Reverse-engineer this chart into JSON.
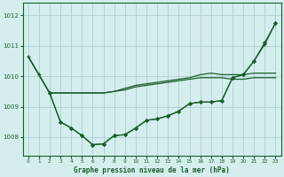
{
  "xlabel": "Graphe pression niveau de la mer (hPa)",
  "xlim": [
    -0.5,
    23.5
  ],
  "ylim": [
    1007.4,
    1012.4
  ],
  "yticks": [
    1008,
    1009,
    1010,
    1011,
    1012
  ],
  "ytick_labels": [
    "1008",
    "1009",
    "1010",
    "1011",
    "1012"
  ],
  "xticks": [
    0,
    1,
    2,
    3,
    4,
    5,
    6,
    7,
    8,
    9,
    10,
    11,
    12,
    13,
    14,
    15,
    16,
    17,
    18,
    19,
    20,
    21,
    22,
    23
  ],
  "bg_color": "#d4eeed",
  "grid_color": "#aacfcf",
  "line_color": "#1a5c2a",
  "flat_line1_x": [
    0,
    1,
    2,
    3,
    4,
    5,
    6,
    7,
    8,
    9,
    10,
    11,
    12,
    13,
    14,
    15,
    16,
    17,
    18,
    19,
    20,
    21,
    22,
    23
  ],
  "flat_line1_y": [
    1010.65,
    1010.05,
    1009.45,
    1009.45,
    1009.45,
    1009.45,
    1009.45,
    1009.45,
    1009.5,
    1009.55,
    1009.65,
    1009.7,
    1009.75,
    1009.8,
    1009.85,
    1009.9,
    1009.95,
    1009.95,
    1009.95,
    1009.9,
    1009.9,
    1009.95,
    1009.95,
    1009.95
  ],
  "flat_line2_x": [
    0,
    1,
    2,
    3,
    4,
    5,
    6,
    7,
    8,
    9,
    10,
    11,
    12,
    13,
    14,
    15,
    16,
    17,
    18,
    19,
    20,
    21,
    22,
    23
  ],
  "flat_line2_y": [
    1010.65,
    1010.05,
    1009.45,
    1009.45,
    1009.45,
    1009.45,
    1009.45,
    1009.45,
    1009.5,
    1009.6,
    1009.7,
    1009.75,
    1009.8,
    1009.85,
    1009.9,
    1009.95,
    1010.05,
    1010.1,
    1010.05,
    1010.05,
    1010.05,
    1010.1,
    1010.1,
    1010.1
  ],
  "dip_line_x": [
    0,
    1,
    2,
    3,
    4,
    5,
    6,
    7,
    8,
    9,
    10,
    11,
    12,
    13,
    14,
    15,
    16,
    17,
    18,
    19,
    20,
    21,
    22,
    23
  ],
  "dip_line_y": [
    1010.65,
    1010.05,
    1009.45,
    1008.5,
    1008.3,
    1008.05,
    1007.75,
    1007.78,
    1008.05,
    1008.08,
    1008.3,
    1008.55,
    1008.6,
    1008.7,
    1008.85,
    1009.1,
    1009.15,
    1009.15,
    1009.2,
    1009.95,
    1010.05,
    1010.5,
    1011.05,
    1011.75
  ],
  "dip_line2_x": [
    2,
    3,
    4,
    5,
    6,
    7,
    8,
    9,
    10,
    11,
    12,
    13,
    14,
    15,
    16,
    17,
    18,
    19,
    20,
    21,
    22,
    23
  ],
  "dip_line2_y": [
    1009.45,
    1008.5,
    1008.3,
    1008.05,
    1007.75,
    1007.78,
    1008.05,
    1008.08,
    1008.3,
    1008.55,
    1008.6,
    1008.7,
    1008.85,
    1009.1,
    1009.15,
    1009.15,
    1009.2,
    1009.95,
    1010.05,
    1010.5,
    1011.1,
    1011.75
  ]
}
